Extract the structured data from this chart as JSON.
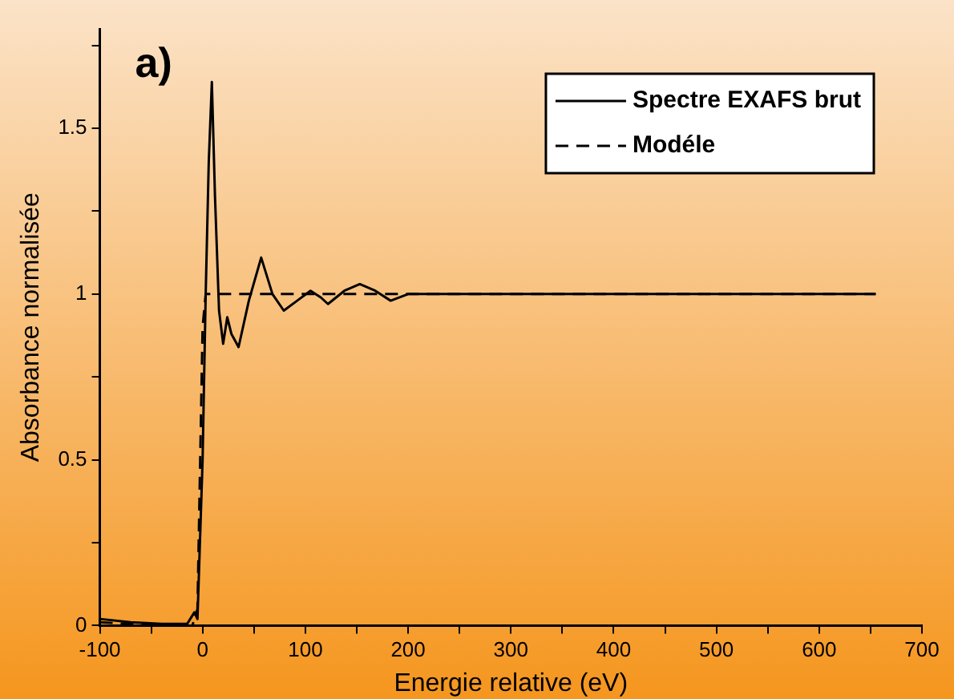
{
  "chart_data": {
    "type": "line",
    "xlabel": "Energie relative (eV)",
    "ylabel": "Absorbance normalisée",
    "annotations": [
      "a)"
    ],
    "xlim": [
      -100,
      700
    ],
    "xticks": [
      -100,
      {
        "value": -50,
        "label": null
      },
      0,
      {
        "value": 50,
        "label": null
      },
      100,
      {
        "value": 150,
        "label": null
      },
      200,
      {
        "value": 250,
        "label": null
      },
      300,
      {
        "value": 350,
        "label": null
      },
      400,
      {
        "value": 450,
        "label": null
      },
      500,
      {
        "value": 550,
        "label": null
      },
      600,
      {
        "value": 650,
        "label": null
      },
      700
    ],
    "ylim": [
      0,
      1.8
    ],
    "yticks": [
      0,
      {
        "value": 0.25,
        "label": null
      },
      0.5,
      {
        "value": 0.75,
        "label": null
      },
      1,
      {
        "value": 1.25,
        "label": null
      },
      1.5,
      {
        "value": 1.75,
        "label": null
      }
    ],
    "legend": "top right",
    "marker": "none",
    "grid": false,
    "series": [
      {
        "name": "Spectre EXAFS brut",
        "color": "#000000",
        "line_style": "solid",
        "x": [
          -100,
          -70,
          -40,
          -15,
          -8,
          -5,
          0,
          3,
          6,
          9,
          12,
          16,
          20,
          24,
          28,
          35,
          45,
          57,
          68,
          79,
          92,
          105,
          115,
          122,
          138,
          153,
          168,
          183,
          200,
          250,
          350,
          450,
          550,
          655
        ],
        "values": [
          0.02,
          0.01,
          0.005,
          0.005,
          0.04,
          0.02,
          0.5,
          1.0,
          1.4,
          1.64,
          1.3,
          0.95,
          0.85,
          0.93,
          0.88,
          0.84,
          0.98,
          1.11,
          1.0,
          0.95,
          0.98,
          1.01,
          0.99,
          0.97,
          1.01,
          1.03,
          1.01,
          0.98,
          1.0,
          1.0,
          1.0,
          1.0,
          1.0,
          1.0
        ]
      },
      {
        "name": "Modéle",
        "color": "#000000",
        "line_style": "dashed",
        "x": [
          -100,
          -40,
          -10,
          -5,
          0,
          3,
          655
        ],
        "values": [
          0.01,
          0,
          0,
          0.05,
          0.9,
          1,
          1
        ]
      }
    ]
  }
}
